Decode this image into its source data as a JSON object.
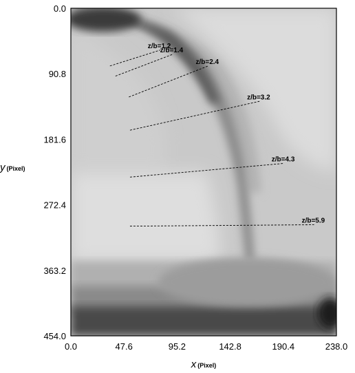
{
  "chart_data": {
    "type": "heatmap",
    "title": "",
    "xlabel": {
      "main": "x",
      "unit": "(Pixel)"
    },
    "ylabel": {
      "main": "y",
      "unit": "(Pixel)"
    },
    "xlim": [
      0.0,
      238.0
    ],
    "ylim": [
      454.0,
      0.0
    ],
    "y_axis_inverted": true,
    "colormap": "grayscale",
    "grid": false,
    "x_ticks": [
      "0.0",
      "47.6",
      "95.2",
      "142.8",
      "190.4",
      "238.0"
    ],
    "y_ticks": [
      "0.0",
      "90.8",
      "181.6",
      "272.4",
      "363.2",
      "454.0"
    ],
    "annotations": [
      {
        "text": "z/b=1.2",
        "line": {
          "x1": 35,
          "y1": 80,
          "x2": 80,
          "y2": 58
        }
      },
      {
        "text": "z/b=1.4",
        "line": {
          "x1": 40,
          "y1": 94,
          "x2": 91,
          "y2": 64
        }
      },
      {
        "text": "z/b=2.4",
        "line": {
          "x1": 52,
          "y1": 123,
          "x2": 123,
          "y2": 80
        }
      },
      {
        "text": "z/b=3.2",
        "line": {
          "x1": 53,
          "y1": 169,
          "x2": 169,
          "y2": 129
        }
      },
      {
        "text": "z/b=4.3",
        "line": {
          "x1": 53,
          "y1": 234,
          "x2": 191,
          "y2": 215
        }
      },
      {
        "text": "z/b=5.9",
        "line": {
          "x1": 53,
          "y1": 302,
          "x2": 218,
          "y2": 300
        }
      }
    ]
  }
}
